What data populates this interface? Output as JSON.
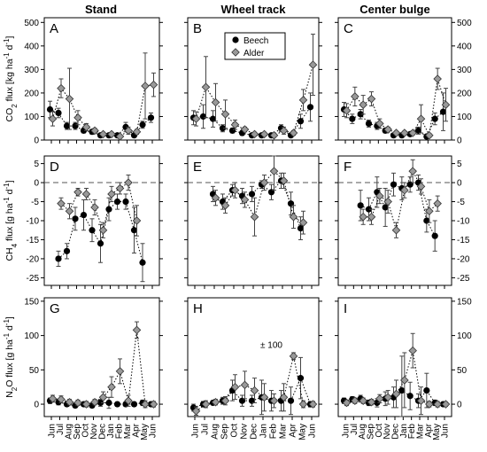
{
  "chart_data": {
    "type": "scatter",
    "columns": [
      "Stand",
      "Wheel track",
      "Center bulge"
    ],
    "months": [
      "Jun",
      "Jul",
      "Aug",
      "Sep",
      "Oct",
      "Nov",
      "Dec",
      "Jan",
      "Feb",
      "Mar",
      "Apr",
      "May",
      "Jun"
    ],
    "legend": [
      "Beech",
      "Alder"
    ],
    "colors": {
      "beech": "#000000",
      "alder": "#999999"
    },
    "rows": [
      {
        "ylabel": "CO2 flux [kg ha-1 d-1]",
        "ylim": [
          0,
          520
        ],
        "yticks": [
          "0",
          "100",
          "200",
          "300",
          "400",
          "500"
        ],
        "yticks_values": [
          0,
          100,
          200,
          300,
          400,
          500
        ],
        "zero_dashed": false,
        "panels": [
          {
            "label": "A",
            "beech": [
              130,
              115,
              60,
              60,
              40,
              35,
              20,
              20,
              20,
              55,
              20,
              65,
              95
            ],
            "beech_err": [
              35,
              20,
              15,
              15,
              10,
              10,
              8,
              8,
              8,
              20,
              8,
              15,
              20
            ],
            "alder": [
              90,
              220,
              175,
              95,
              55,
              40,
              25,
              25,
              15,
              40,
              35,
              230,
              235
            ],
            "alder_err": [
              30,
              40,
              130,
              30,
              15,
              10,
              8,
              8,
              5,
              15,
              10,
              140,
              50
            ]
          },
          {
            "label": "B",
            "beech": [
              95,
              100,
              90,
              50,
              40,
              30,
              20,
              20,
              20,
              50,
              20,
              80,
              140
            ],
            "beech_err": [
              30,
              50,
              35,
              15,
              10,
              10,
              8,
              8,
              8,
              15,
              8,
              30,
              60
            ],
            "alder": [
              90,
              225,
              160,
              110,
              65,
              45,
              25,
              25,
              20,
              40,
              30,
              170,
              320
            ],
            "alder_err": [
              30,
              130,
              80,
              60,
              20,
              10,
              8,
              8,
              8,
              15,
              10,
              45,
              130
            ]
          },
          {
            "label": "C",
            "beech": [
              130,
              90,
              110,
              70,
              60,
              40,
              20,
              20,
              25,
              40,
              15,
              90,
              120
            ],
            "beech_err": [
              30,
              20,
              20,
              15,
              15,
              10,
              8,
              8,
              8,
              15,
              8,
              25,
              80
            ],
            "alder": [
              125,
              185,
              150,
              175,
              70,
              45,
              30,
              30,
              30,
              90,
              20,
              260,
              150
            ],
            "alder_err": [
              30,
              40,
              40,
              30,
              20,
              10,
              8,
              8,
              8,
              60,
              8,
              45,
              70
            ]
          }
        ]
      },
      {
        "ylabel": "CH4 flux [g ha-1 d-1]",
        "ylim": [
          -27,
          7
        ],
        "yticks": [
          "-25",
          "-20",
          "-15",
          "-10",
          "-5",
          "0",
          "5"
        ],
        "yticks_values": [
          -25,
          -20,
          -15,
          -10,
          -5,
          0,
          5
        ],
        "zero_dashed": true,
        "panels": [
          {
            "label": "D",
            "beech": [
              null,
              -20,
              -18,
              -9.5,
              -8.5,
              -12.5,
              -16,
              -7,
              -5,
              -5,
              -12.5,
              -21
            ],
            "beech_err": [
              null,
              2,
              2,
              3,
              4,
              3,
              5,
              3,
              2,
              2,
              6,
              5
            ],
            "alder": [
              null,
              -5.5,
              -7.5,
              -2.5,
              -3,
              -6.5,
              -12.5,
              -3,
              -1.5,
              0,
              -10,
              null
            ],
            "alder_err": [
              null,
              1.5,
              2,
              1,
              1.5,
              2,
              2,
              2,
              1.5,
              2,
              4,
              null
            ]
          },
          {
            "label": "E",
            "beech": [
              null,
              null,
              -3,
              -5,
              -2,
              -3.5,
              -3,
              -0.5,
              -2.5,
              0.5,
              -5.5,
              -12
            ],
            "beech_err": [
              null,
              null,
              2,
              2,
              1.5,
              2,
              2,
              1,
              2,
              2,
              3,
              3
            ],
            "alder": [
              null,
              null,
              -4,
              -6,
              -2,
              -4.5,
              -9,
              0,
              3,
              0.5,
              -9,
              -10.5
            ],
            "alder_err": [
              null,
              null,
              2,
              2,
              2,
              2,
              5,
              2,
              5,
              2,
              3,
              3
            ]
          },
          {
            "label": "F",
            "beech": [
              null,
              null,
              -6,
              -7,
              -2.5,
              -6.5,
              -0.5,
              -1.5,
              -0.5,
              0,
              -10,
              -14
            ],
            "beech_err": [
              null,
              null,
              4,
              3,
              4,
              5,
              3,
              3,
              2,
              2,
              3,
              4
            ],
            "alder": [
              null,
              null,
              -9,
              -9,
              -3.5,
              -5,
              -12.5,
              -2,
              3,
              -1,
              -7.5,
              -5.5
            ],
            "alder_err": [
              null,
              null,
              2,
              2,
              2,
              3,
              2,
              2,
              3,
              2,
              3,
              2
            ]
          }
        ]
      },
      {
        "ylabel": "N2O flux [g ha-1 d-1]",
        "ylim": [
          -18,
          155
        ],
        "yticks": [
          "0",
          "50",
          "100",
          "150"
        ],
        "yticks_values": [
          0,
          50,
          100,
          150
        ],
        "zero_dashed": false,
        "panels": [
          {
            "label": "G",
            "beech": [
              5,
              3,
              0,
              -2,
              0,
              -2,
              2,
              2,
              0,
              0,
              0,
              2,
              0
            ],
            "beech_err": [
              4,
              4,
              3,
              3,
              3,
              3,
              5,
              8,
              3,
              3,
              3,
              4,
              3
            ],
            "alder": [
              8,
              7,
              3,
              2,
              0,
              3,
              10,
              25,
              48,
              5,
              108,
              0,
              0
            ],
            "alder_err": [
              5,
              5,
              4,
              4,
              4,
              4,
              8,
              15,
              18,
              8,
              12,
              5,
              4
            ]
          },
          {
            "label": "H",
            "beech": [
              -5,
              0,
              2,
              5,
              20,
              5,
              5,
              10,
              5,
              5,
              5,
              38,
              0
            ],
            "beech_err": [
              5,
              4,
              3,
              5,
              15,
              8,
              8,
              25,
              15,
              15,
              20,
              30,
              4
            ],
            "alder": [
              -10,
              0,
              3,
              5,
              25,
              28,
              20,
              10,
              5,
              10,
              70,
              0,
              0
            ],
            "alder_err": [
              6,
              5,
              4,
              6,
              18,
              20,
              18,
              20,
              10,
              20,
              5,
              5,
              4
            ]
          },
          {
            "label": "I",
            "beech": [
              5,
              7,
              8,
              2,
              2,
              8,
              10,
              20,
              12,
              5,
              20,
              2,
              0
            ],
            "beech_err": [
              4,
              4,
              5,
              4,
              6,
              10,
              15,
              50,
              20,
              10,
              25,
              4,
              3
            ],
            "alder": [
              2,
              5,
              5,
              3,
              8,
              10,
              15,
              35,
              78,
              5,
              0,
              0,
              0
            ],
            "alder_err": [
              4,
              4,
              4,
              4,
              6,
              10,
              20,
              40,
              25,
              20,
              4,
              4,
              3
            ]
          }
        ]
      }
    ],
    "annotation_h": "± 100"
  },
  "labels": {
    "col1": "Stand",
    "col2": "Wheel track",
    "col3": "Center bulge",
    "ylab_co2_pre": "CO",
    "ylab_co2_sub": "2",
    "ylab_co2_post": " flux [kg ha",
    "ylab_ch4_pre": "CH",
    "ylab_ch4_sub": "4",
    "ylab_ch4_post": " flux [g ha",
    "ylab_n2o_pre": "N",
    "ylab_n2o_sub": "2",
    "ylab_n2o_post": "O flux [g ha",
    "ylab_unit_tail": "-1 d-1]"
  }
}
